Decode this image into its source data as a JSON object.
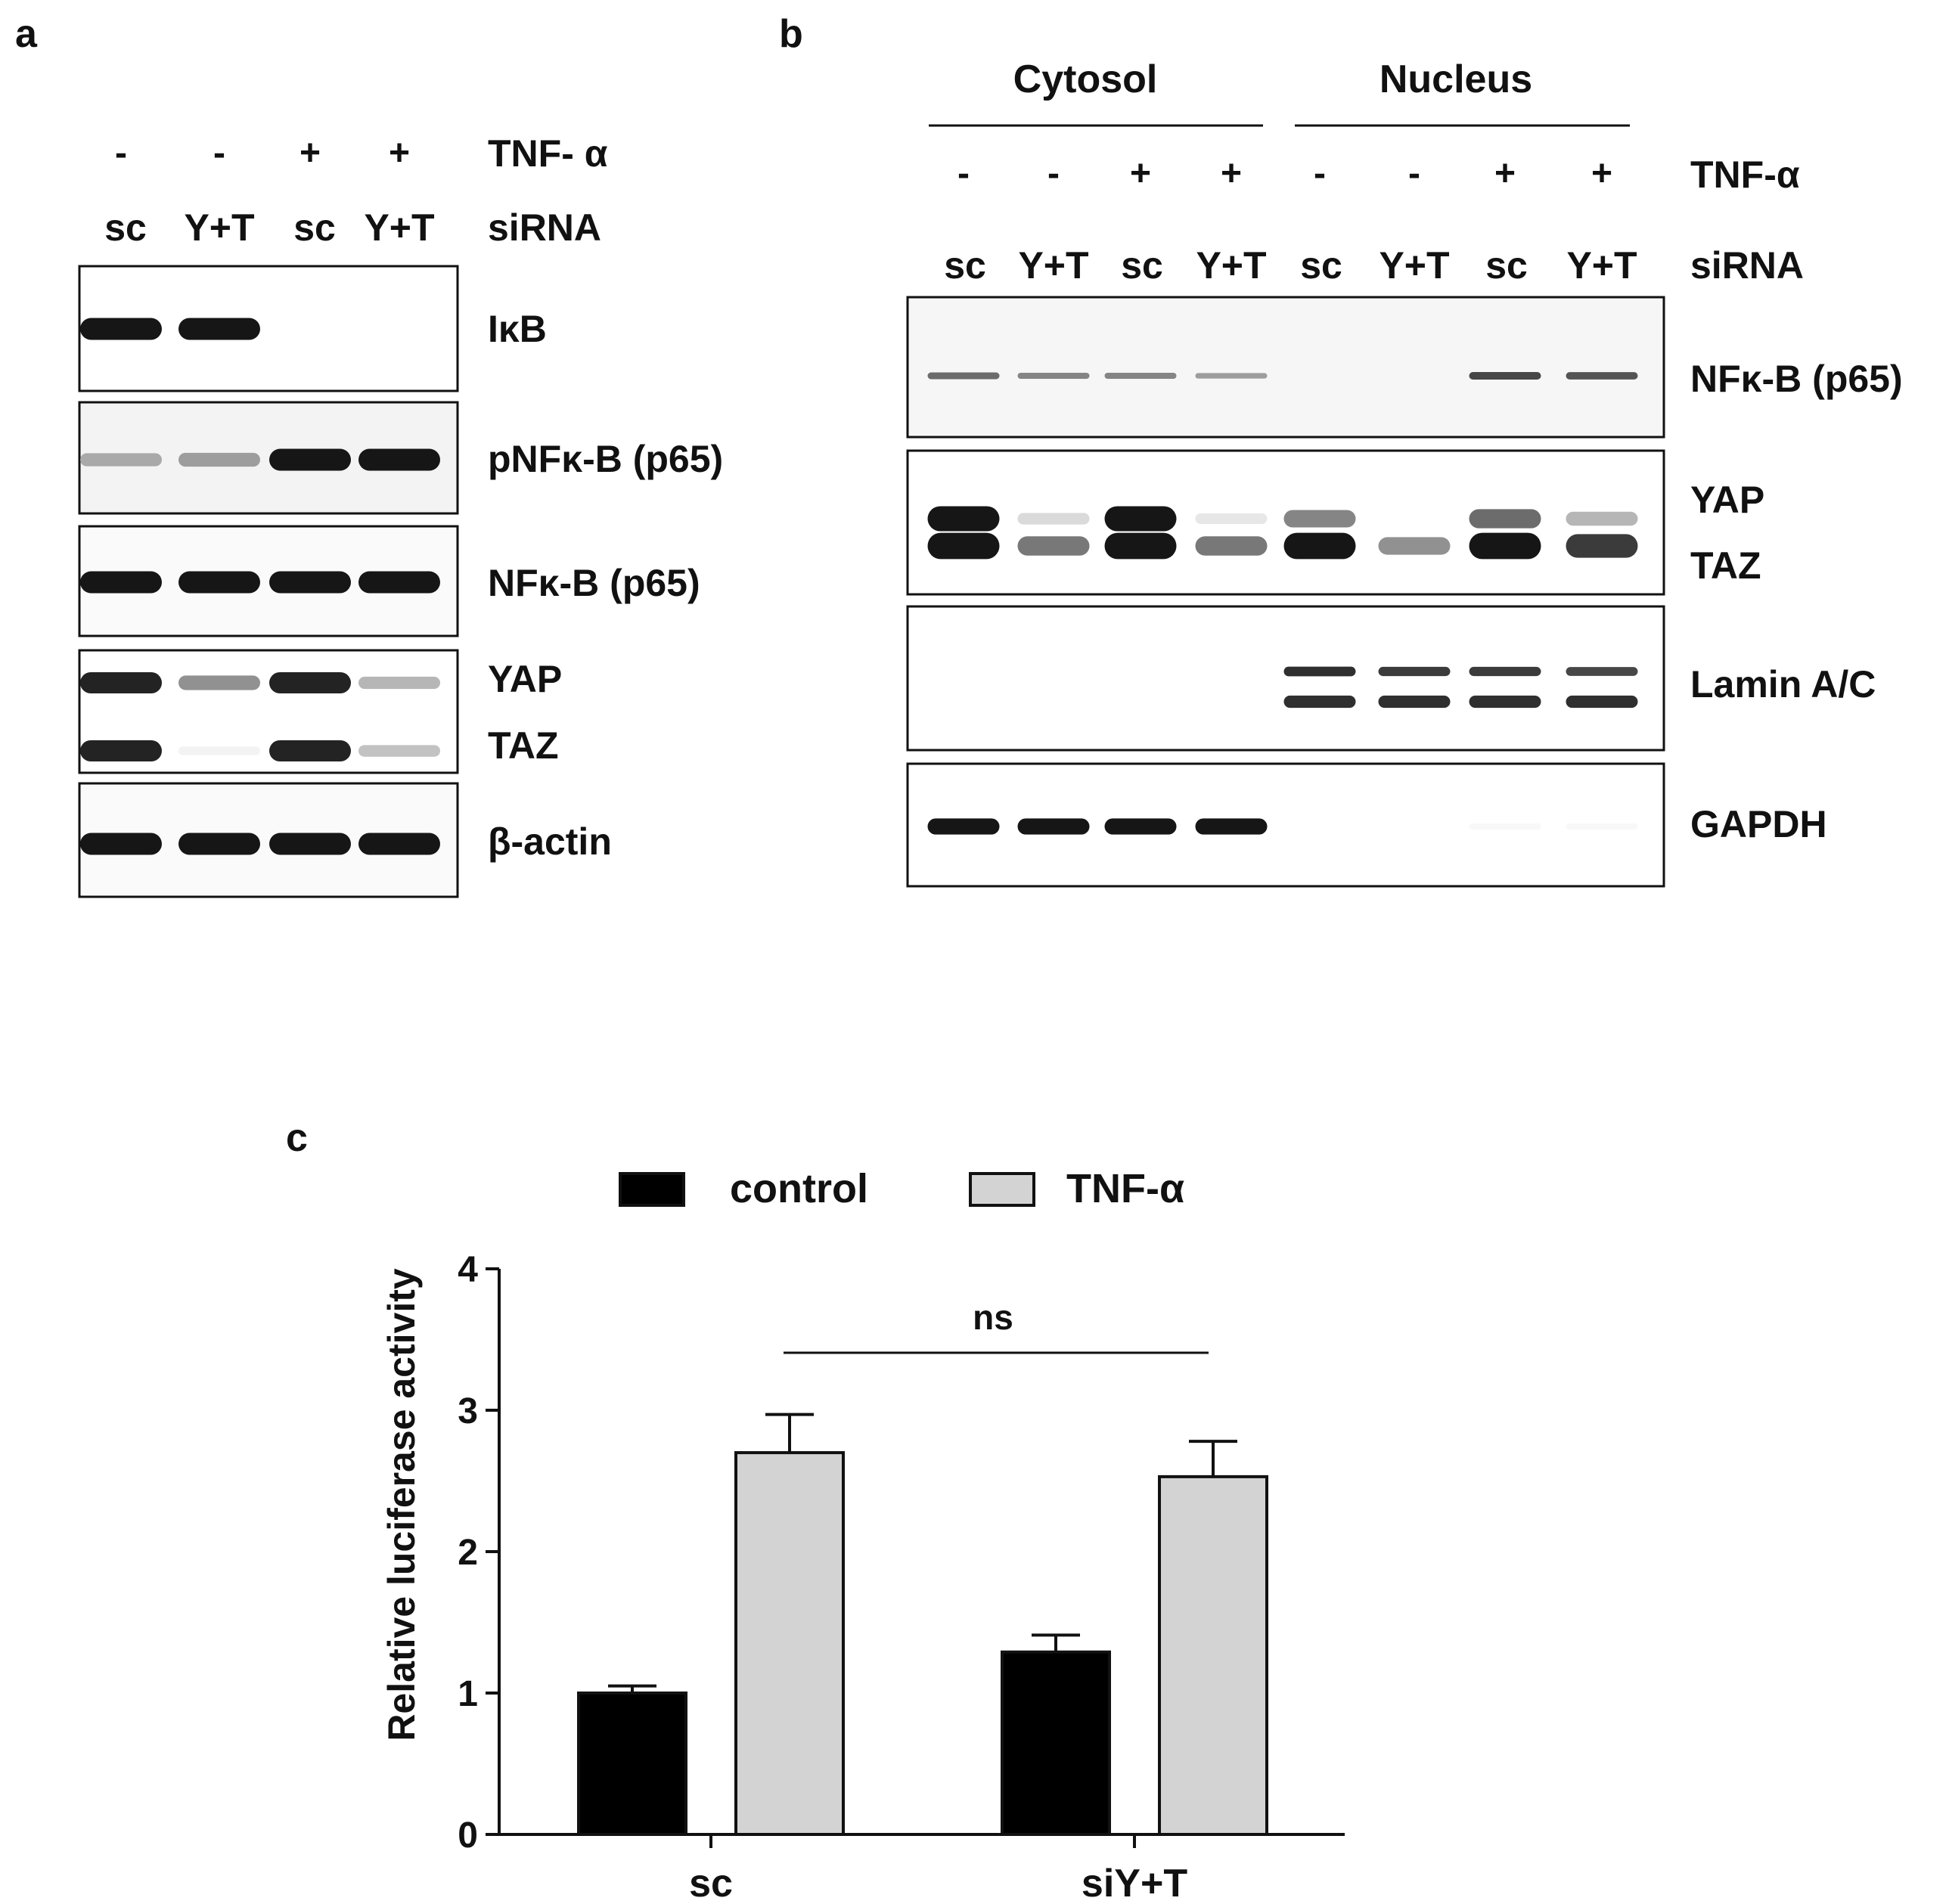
{
  "panel_a": {
    "letter": "a",
    "treatment": {
      "label": "TNF- α",
      "values": [
        "-",
        "-",
        "+",
        "+"
      ]
    },
    "sirna": {
      "label": "siRNA",
      "values": [
        "sc",
        "Y+T",
        "sc",
        "Y+T"
      ]
    },
    "blots": [
      {
        "label": "IκB",
        "bands": [
          [
            0.95,
            0.95,
            0.0,
            0.0
          ]
        ]
      },
      {
        "label": "pNFκ-B (p65)",
        "bands": [
          [
            0.35,
            0.4,
            0.95,
            0.95
          ]
        ]
      },
      {
        "label": "NFκ-B (p65)",
        "bands": [
          [
            0.95,
            0.95,
            0.95,
            0.95
          ]
        ]
      },
      {
        "labels": [
          "YAP",
          "TAZ"
        ],
        "bands": [
          [
            0.9,
            0.45,
            0.9,
            0.3
          ],
          [
            0.9,
            0.05,
            0.9,
            0.25
          ]
        ]
      },
      {
        "label": "β-actin",
        "bands": [
          [
            0.95,
            0.95,
            0.95,
            0.95
          ]
        ]
      }
    ]
  },
  "panel_b": {
    "letter": "b",
    "groups": [
      "Cytosol",
      "Nucleus"
    ],
    "treatment": {
      "label": "TNF-α",
      "values": [
        "-",
        "-",
        "+",
        "+",
        "-",
        "-",
        "+",
        "+"
      ]
    },
    "sirna": {
      "label": "siRNA",
      "values": [
        "sc",
        "Y+T",
        "sc",
        "Y+T",
        "sc",
        "Y+T",
        "sc",
        "Y+T"
      ]
    },
    "blots": [
      {
        "label": "NFκ-B (p65)",
        "bands": [
          [
            0.6,
            0.5,
            0.5,
            0.4,
            0.0,
            0.0,
            0.75,
            0.7
          ]
        ]
      },
      {
        "labels": [
          "YAP",
          "TAZ"
        ],
        "bands": [
          [
            0.95,
            0.15,
            0.95,
            0.1,
            0.5,
            0.0,
            0.6,
            0.3
          ],
          [
            0.95,
            0.55,
            0.95,
            0.55,
            0.95,
            0.45,
            0.95,
            0.8
          ]
        ]
      },
      {
        "label": "Lamin A/C",
        "bands": [
          [
            0.0,
            0.0,
            0.0,
            0.0,
            0.85,
            0.8,
            0.8,
            0.75
          ],
          [
            0.0,
            0.0,
            0.0,
            0.0,
            0.85,
            0.85,
            0.85,
            0.85
          ]
        ]
      },
      {
        "label": "GAPDH",
        "bands": [
          [
            0.95,
            0.95,
            0.95,
            0.95,
            0.0,
            0.0,
            0.03,
            0.03
          ]
        ]
      }
    ]
  },
  "panel_c": {
    "letter": "c",
    "significance": "ns"
  },
  "chart_data": {
    "type": "bar",
    "categories": [
      "sc",
      "siY+T"
    ],
    "series": [
      {
        "name": "control",
        "color": "#000000",
        "values": [
          1.0,
          1.29
        ],
        "errors": [
          0.05,
          0.12
        ]
      },
      {
        "name": "TNF-α",
        "color": "#d3d3d3",
        "values": [
          2.7,
          2.53
        ],
        "errors": [
          0.27,
          0.25
        ]
      }
    ],
    "xlabel": "",
    "ylabel": "Relative luciferase activity",
    "ylim": [
      0,
      4
    ],
    "yticks": [
      "0",
      "1",
      "2",
      "3",
      "4"
    ],
    "legend": "top",
    "grid": false
  }
}
